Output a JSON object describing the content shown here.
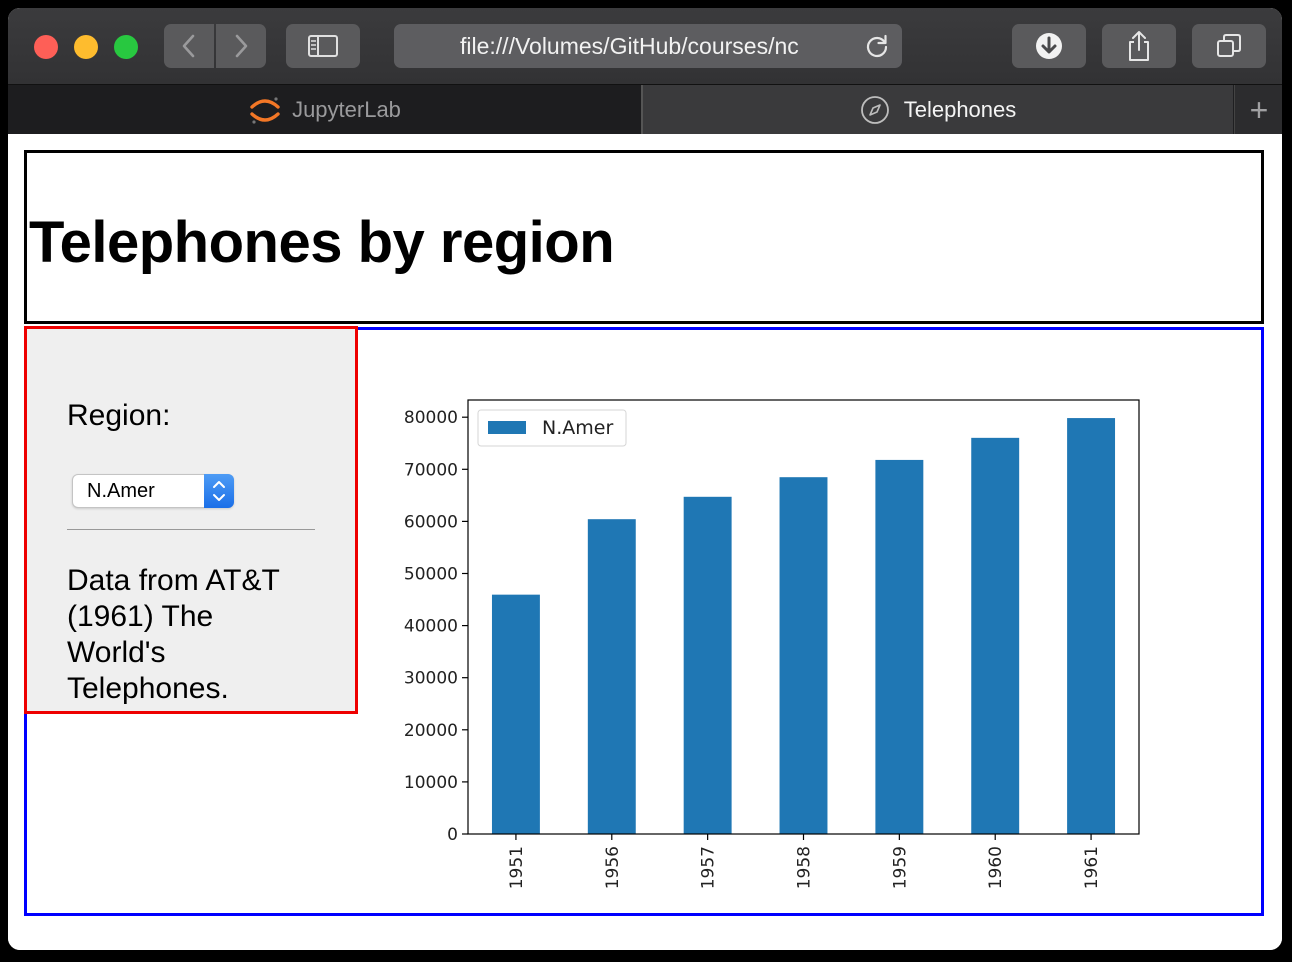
{
  "browser": {
    "url": "file:///Volumes/GitHub/courses/nc",
    "tabs": [
      {
        "label": "JupyterLab",
        "active": false
      },
      {
        "label": "Telephones",
        "active": true
      }
    ],
    "new_tab_symbol": "+"
  },
  "page": {
    "title": "Telephones by region",
    "region_label": "Region:",
    "region_selected": "N.Amer",
    "note": "Data from AT&T (1961) The World's Telephones."
  },
  "colors": {
    "bar": "#1f77b4",
    "header_border": "#000000",
    "sidebar_border": "#ee0000",
    "output_border": "#0000ff"
  },
  "chart_data": {
    "type": "bar",
    "categories": [
      "1951",
      "1956",
      "1957",
      "1958",
      "1959",
      "1960",
      "1961"
    ],
    "series": [
      {
        "name": "N.Amer",
        "values": [
          45939,
          60423,
          64721,
          68484,
          71799,
          76036,
          79831
        ]
      }
    ],
    "yticks": [
      "0",
      "10000",
      "20000",
      "30000",
      "40000",
      "50000",
      "60000",
      "70000",
      "80000"
    ],
    "ylim": [
      0,
      83300
    ],
    "legend": "top-left",
    "xlabel_rotation": "vertical",
    "grid": false
  }
}
